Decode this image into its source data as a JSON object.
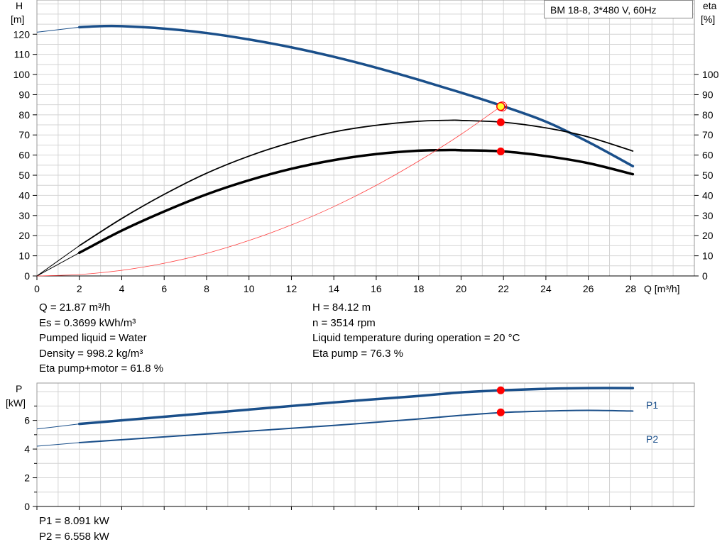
{
  "chart_data": [
    {
      "type": "line",
      "title": "BM  18-8, 3*480 V, 60Hz",
      "xlabel": "Q [m³/h]",
      "ylabel_left": "H",
      "ylabel_left_unit": "[m]",
      "ylabel_right": "eta",
      "ylabel_right_unit": "[%]",
      "xlim": [
        0,
        31
      ],
      "ylim": [
        0,
        137
      ],
      "x_ticks": [
        "0",
        "2",
        "4",
        "6",
        "8",
        "10",
        "12",
        "14",
        "16",
        "18",
        "20",
        "22",
        "24",
        "26",
        "28"
      ],
      "y_ticks_left": [
        "0",
        "10",
        "20",
        "30",
        "40",
        "50",
        "60",
        "70",
        "80",
        "90",
        "100",
        "110",
        "120"
      ],
      "y_ticks_right": [
        "0",
        "10",
        "20",
        "30",
        "40",
        "50",
        "60",
        "70",
        "80",
        "90",
        "100"
      ],
      "grid": true,
      "series": [
        {
          "name": "H",
          "color": "#1a4f8a",
          "extrapolated": {
            "x": [
              0,
              2
            ],
            "y": [
              121,
              123.5
            ]
          },
          "x": [
            2,
            3,
            4,
            6,
            8,
            10,
            12,
            14,
            16,
            18,
            20,
            22,
            24,
            26,
            28.1
          ],
          "y": [
            123.5,
            124,
            124,
            122.8,
            120.6,
            117.4,
            113.5,
            108.8,
            103.4,
            97.4,
            91,
            84.2,
            76.6,
            66.5,
            54.5
          ]
        },
        {
          "name": "Eta pump",
          "color": "#000000",
          "extrapolated": {
            "x": [
              0,
              2
            ],
            "y": [
              0,
              15
            ]
          },
          "x": [
            2,
            4,
            6,
            8,
            10,
            12,
            14,
            16,
            18,
            19.5,
            20,
            22,
            24,
            26,
            28.1
          ],
          "y": [
            15,
            28.5,
            40.5,
            51,
            59.5,
            66.3,
            71.5,
            74.8,
            76.8,
            77.3,
            77.2,
            76.3,
            73.5,
            69,
            62
          ]
        },
        {
          "name": "Eta pump+motor",
          "color": "#000000",
          "extrapolated": {
            "x": [
              0,
              2
            ],
            "y": [
              0,
              11.5
            ]
          },
          "x": [
            2,
            4,
            6,
            8,
            10,
            12,
            14,
            16,
            18,
            19.5,
            20,
            22,
            24,
            26,
            28.1
          ],
          "y": [
            11.5,
            22.5,
            32,
            40.5,
            47.5,
            53.2,
            57.5,
            60.5,
            62.2,
            62.5,
            62.4,
            61.8,
            59.5,
            56,
            50.5
          ]
        },
        {
          "name": "System curve",
          "color": "#ff4040",
          "x": [
            0,
            2,
            4,
            6,
            8,
            10,
            12,
            14,
            16,
            18,
            20,
            21.87
          ],
          "y": [
            0,
            0.7,
            2.8,
            6.3,
            11.2,
            17.6,
            25.3,
            34.4,
            45,
            57,
            70.3,
            84.12
          ]
        }
      ],
      "duty_point": {
        "x": 21.87,
        "H": 84.12,
        "eta_pump": 76.3,
        "eta_pump_motor": 61.8,
        "color": "#ffff33"
      },
      "marker_color": "#ff0000"
    },
    {
      "type": "line",
      "ylabel": "P",
      "ylabel_unit": "[kW]",
      "xlim": [
        0,
        31
      ],
      "ylim": [
        0,
        8.6
      ],
      "y_ticks": [
        "0",
        "2",
        "4",
        "6"
      ],
      "grid": true,
      "series": [
        {
          "name": "P1",
          "color": "#1a4f8a",
          "extrapolated": {
            "x": [
              0,
              2
            ],
            "y": [
              5.4,
              5.75
            ]
          },
          "x": [
            2,
            6,
            10,
            14,
            18,
            20,
            22,
            24,
            26,
            28.1
          ],
          "y": [
            5.75,
            6.25,
            6.75,
            7.25,
            7.7,
            7.95,
            8.1,
            8.2,
            8.25,
            8.25
          ]
        },
        {
          "name": "P2",
          "color": "#1a4f8a",
          "extrapolated": {
            "x": [
              0,
              2
            ],
            "y": [
              4.2,
              4.45
            ]
          },
          "x": [
            2,
            6,
            10,
            14,
            18,
            20,
            22,
            24,
            26,
            28.1
          ],
          "y": [
            4.45,
            4.85,
            5.25,
            5.65,
            6.1,
            6.35,
            6.55,
            6.65,
            6.7,
            6.65
          ]
        }
      ],
      "duty_point": {
        "x": 21.87,
        "P1": 8.091,
        "P2": 6.558
      }
    }
  ],
  "info": {
    "left": [
      "Q = 21.87 m³/h",
      "Es = 0.3699 kWh/m³",
      "Pumped liquid = Water",
      "Density = 998.2 kg/m³",
      "Eta pump+motor = 61.8 %"
    ],
    "right": [
      "H = 84.12 m",
      "n = 3514 rpm",
      "Liquid temperature during operation = 20 °C",
      "Eta pump = 76.3 %"
    ],
    "bottom": [
      "P1 = 8.091 kW",
      "P2 = 6.558 kW"
    ]
  }
}
